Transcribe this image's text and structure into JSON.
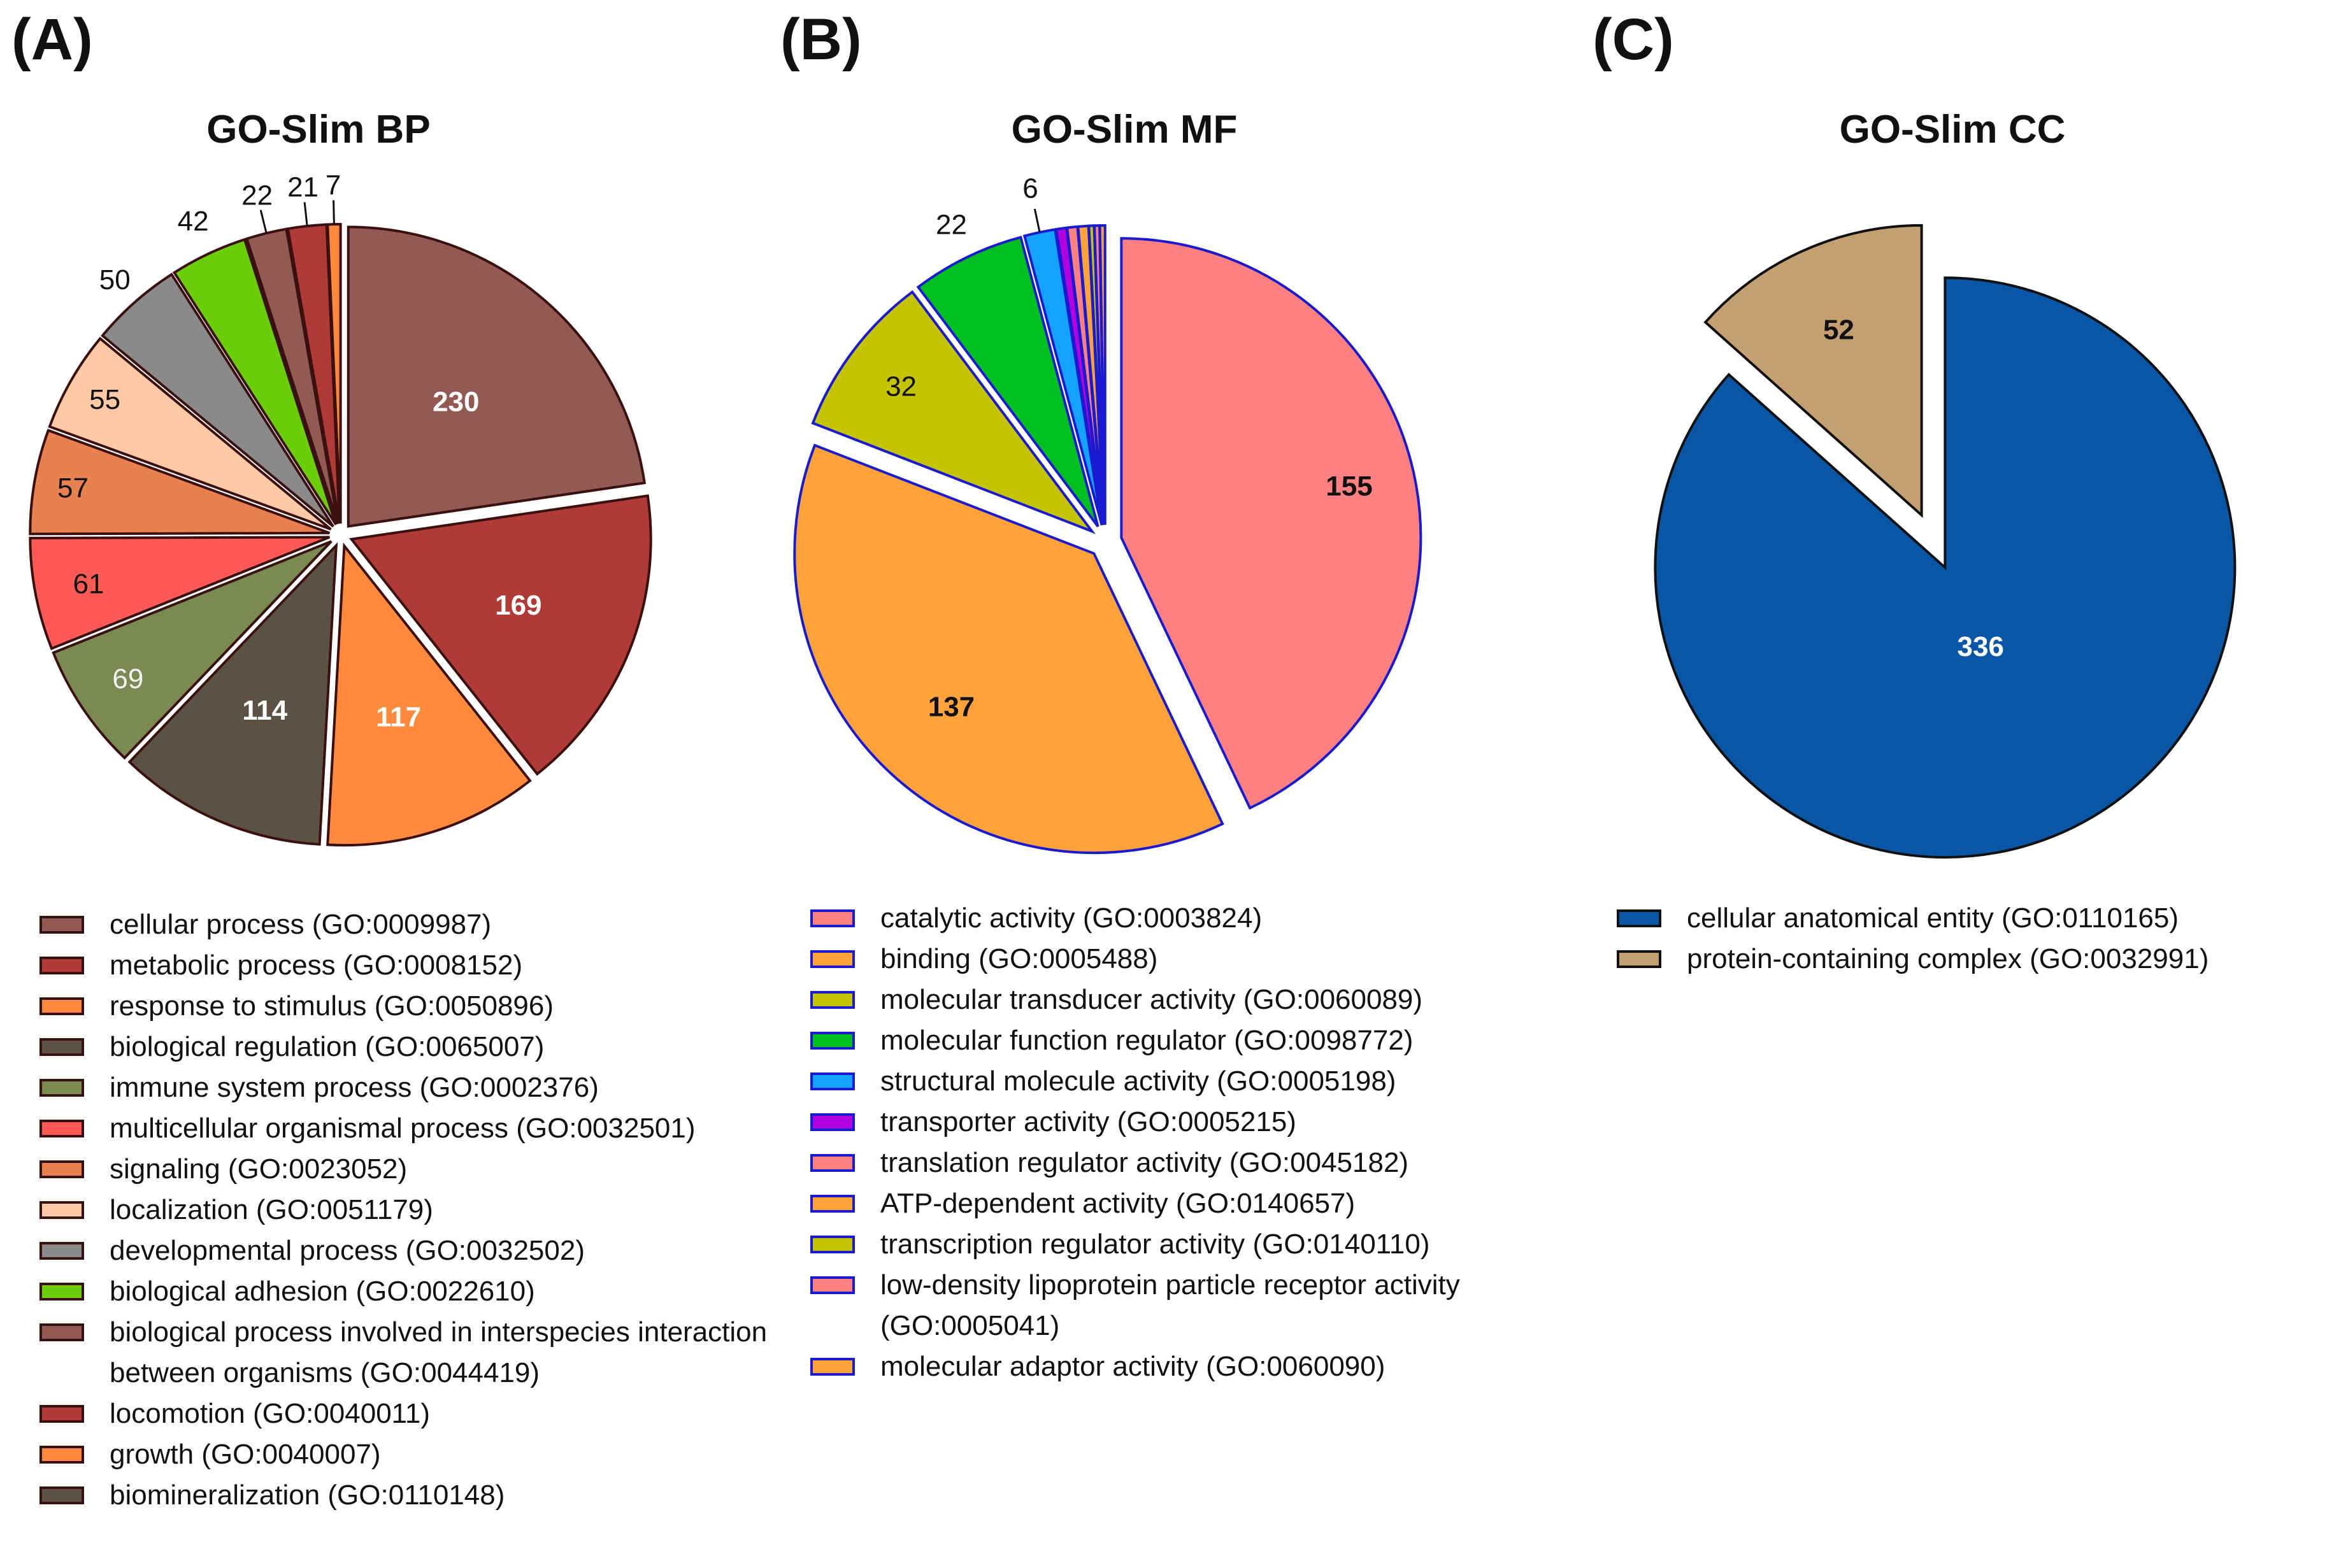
{
  "panels": [
    {
      "letter": "(A)",
      "title": "GO-Slim BP"
    },
    {
      "letter": "(B)",
      "title": "GO-Slim MF"
    },
    {
      "letter": "(C)",
      "title": "GO-Slim CC"
    }
  ],
  "chart_data": [
    {
      "type": "pie",
      "title": "GO-Slim BP",
      "categories": [
        "cellular process (GO:0009987)",
        "metabolic process (GO:0008152)",
        "response to stimulus (GO:0050896)",
        "biological regulation (GO:0065007)",
        "immune system process (GO:0002376)",
        "multicellular organismal process (GO:0032501)",
        "signaling (GO:0023052)",
        "localization (GO:0051179)",
        "developmental process (GO:0032502)",
        "biological adhesion (GO:0022610)",
        "biological process involved in interspecies interaction between organisms (GO:0044419)",
        "locomotion (GO:0040011)",
        "growth (GO:0040007)",
        "biomineralization (GO:0110148)"
      ],
      "values": [
        230,
        169,
        117,
        114,
        69,
        61,
        57,
        55,
        50,
        42,
        22,
        21,
        7,
        0
      ],
      "labels": [
        "230",
        "169",
        "117",
        "114",
        "69",
        "61",
        "57",
        "55",
        "50",
        "42",
        "22",
        "21",
        "7",
        ""
      ],
      "colors": [
        "#935953",
        "#b03a36",
        "#ff8a3d",
        "#5b5244",
        "#7a8a52",
        "#ff5a55",
        "#e9804f",
        "#ffc9a6",
        "#8a8a8a",
        "#6ccd0a",
        "#935953",
        "#b03a36",
        "#ff8a3d",
        "#5b5244"
      ],
      "edge_color": "#3a1010"
    },
    {
      "type": "pie",
      "title": "GO-Slim MF",
      "categories": [
        "catalytic activity (GO:0003824)",
        "binding (GO:0005488)",
        "molecular transducer activity (GO:0060089)",
        "molecular function regulator (GO:0098772)",
        "structural molecule activity (GO:0005198)",
        "transporter activity (GO:0005215)",
        "translation regulator activity (GO:0045182)",
        "ATP-dependent activity (GO:0140657)",
        "transcription regulator activity (GO:0140110)",
        "low-density lipoprotein particle receptor activity (GO:0005041)",
        "molecular adaptor activity (GO:0060090)"
      ],
      "values": [
        155,
        137,
        32,
        22,
        6,
        2,
        2,
        2,
        1,
        1,
        1
      ],
      "labels": [
        "155",
        "137",
        "32",
        "22",
        "6",
        "",
        "",
        "",
        "",
        "",
        ""
      ],
      "colors": [
        "#ff8080",
        "#ffa23a",
        "#c4c400",
        "#00c020",
        "#14a2ff",
        "#b000e0",
        "#ff8080",
        "#ffa23a",
        "#c4c400",
        "#ff8080",
        "#ffa23a"
      ],
      "edge_color": "#1a1ad0"
    },
    {
      "type": "pie",
      "title": "GO-Slim CC",
      "categories": [
        "cellular anatomical entity (GO:0110165)",
        "protein-containing complex (GO:0032991)"
      ],
      "values": [
        336,
        52
      ],
      "labels": [
        "336",
        "52"
      ],
      "colors": [
        "#0a56a6",
        "#c4a070"
      ],
      "edge_color": "#111111"
    }
  ]
}
